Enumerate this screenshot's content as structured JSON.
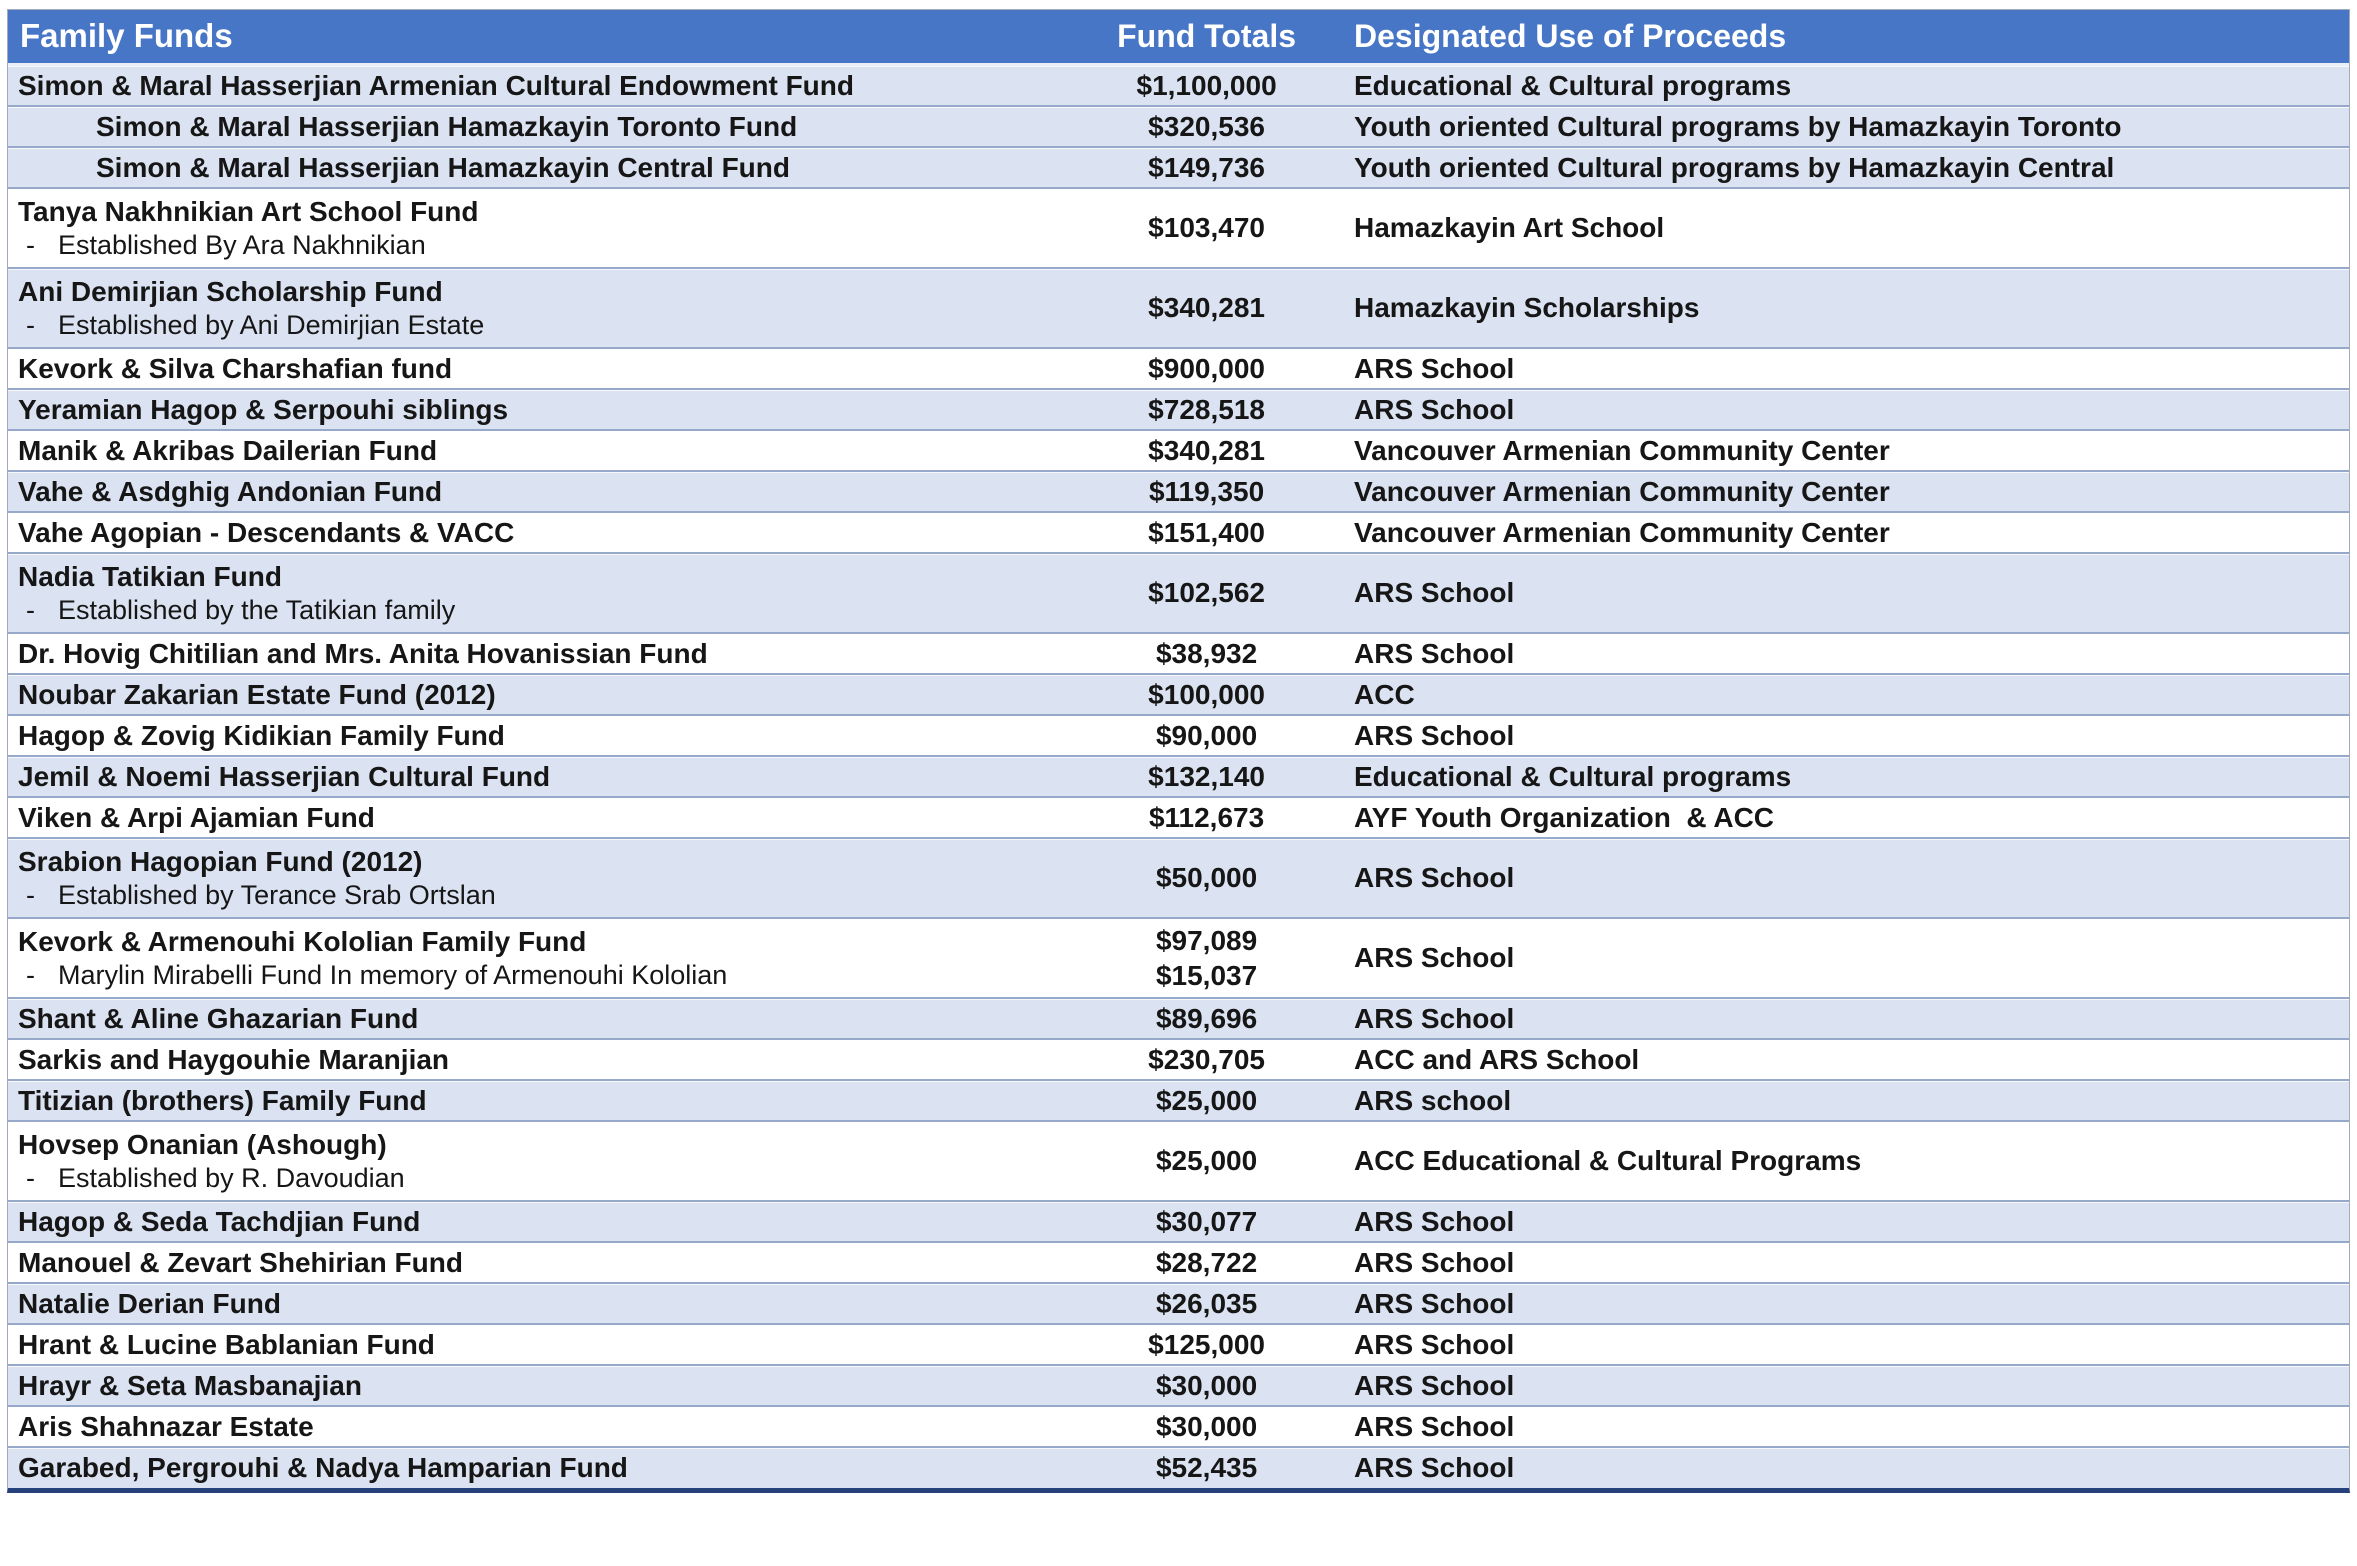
{
  "table": {
    "sub_bullet": "-",
    "columns": [
      {
        "label": "Family Funds"
      },
      {
        "label": "Fund Totals"
      },
      {
        "label": "Designated Use of Proceeds"
      }
    ],
    "colors": {
      "header_bg": "#4676C5",
      "header_text": "#FFFFFF",
      "row_blue": "#DBE2F1",
      "row_white": "#FFFFFF",
      "separator": "#97A9CB",
      "outer_border": "#A3ABB9",
      "bottom_border": "#27417D",
      "text": "#161616"
    },
    "rows": [
      {
        "name": "Simon & Maral Hasserjian Armenian Cultural Endowment Fund",
        "indent": false,
        "sub": null,
        "amounts": [
          "$1,100,000"
        ],
        "use": "Educational & Cultural programs",
        "shade": "blue"
      },
      {
        "name": "Simon & Maral Hasserjian Hamazkayin Toronto Fund",
        "indent": true,
        "sub": null,
        "amounts": [
          "$320,536"
        ],
        "use": "Youth oriented Cultural programs by Hamazkayin Toronto",
        "shade": "blue"
      },
      {
        "name": "Simon & Maral Hasserjian Hamazkayin Central Fund",
        "indent": true,
        "sub": null,
        "amounts": [
          "$149,736"
        ],
        "use": "Youth oriented Cultural programs by Hamazkayin Central",
        "shade": "blue"
      },
      {
        "name": "Tanya Nakhnikian Art School Fund",
        "indent": false,
        "sub": "Established By Ara Nakhnikian",
        "amounts": [
          "$103,470"
        ],
        "use": "Hamazkayin Art School",
        "shade": "white"
      },
      {
        "name": "Ani Demirjian Scholarship Fund",
        "indent": false,
        "sub": "Established by Ani Demirjian Estate",
        "amounts": [
          "$340,281"
        ],
        "use": "Hamazkayin Scholarships",
        "shade": "blue"
      },
      {
        "name": "Kevork & Silva Charshafian fund",
        "indent": false,
        "sub": null,
        "amounts": [
          "$900,000"
        ],
        "use": "ARS School",
        "shade": "white"
      },
      {
        "name": "Yeramian Hagop & Serpouhi siblings",
        "indent": false,
        "sub": null,
        "amounts": [
          "$728,518"
        ],
        "use": "ARS School",
        "shade": "blue"
      },
      {
        "name": "Manik & Akribas Dailerian Fund",
        "indent": false,
        "sub": null,
        "amounts": [
          "$340,281"
        ],
        "use": "Vancouver Armenian Community Center",
        "shade": "white"
      },
      {
        "name": "Vahe & Asdghig Andonian Fund",
        "indent": false,
        "sub": null,
        "amounts": [
          "$119,350"
        ],
        "use": "Vancouver Armenian Community Center",
        "shade": "blue"
      },
      {
        "name": "Vahe Agopian - Descendants & VACC",
        "indent": false,
        "sub": null,
        "amounts": [
          "$151,400"
        ],
        "use": "Vancouver Armenian Community Center",
        "shade": "white"
      },
      {
        "name": "Nadia Tatikian Fund",
        "indent": false,
        "sub": "Established by the Tatikian family",
        "amounts": [
          "$102,562"
        ],
        "use": "ARS School",
        "shade": "blue"
      },
      {
        "name": "Dr. Hovig Chitilian and Mrs. Anita Hovanissian Fund",
        "indent": false,
        "sub": null,
        "amounts": [
          "$38,932"
        ],
        "use": "ARS School",
        "shade": "white"
      },
      {
        "name": "Noubar Zakarian Estate Fund (2012)",
        "indent": false,
        "sub": null,
        "amounts": [
          "$100,000"
        ],
        "use": "ACC",
        "shade": "blue"
      },
      {
        "name": "Hagop & Zovig Kidikian Family Fund",
        "indent": false,
        "sub": null,
        "amounts": [
          "$90,000"
        ],
        "use": "ARS School",
        "shade": "white"
      },
      {
        "name": "Jemil & Noemi Hasserjian Cultural Fund",
        "indent": false,
        "sub": null,
        "amounts": [
          "$132,140"
        ],
        "use": "Educational & Cultural programs",
        "shade": "blue"
      },
      {
        "name": "Viken & Arpi Ajamian Fund",
        "indent": false,
        "sub": null,
        "amounts": [
          "$112,673"
        ],
        "use": "AYF Youth Organization  & ACC",
        "shade": "white"
      },
      {
        "name": "Srabion Hagopian Fund (2012)",
        "indent": false,
        "sub": "Established by Terance Srab Ortslan",
        "amounts": [
          "$50,000"
        ],
        "use": "ARS School",
        "shade": "blue"
      },
      {
        "name": "Kevork & Armenouhi Kololian Family Fund",
        "indent": false,
        "sub": "Marylin Mirabelli Fund In memory of Armenouhi Kololian",
        "amounts": [
          "$97,089",
          "$15,037"
        ],
        "use": "ARS School",
        "shade": "white"
      },
      {
        "name": "Shant & Aline Ghazarian Fund",
        "indent": false,
        "sub": null,
        "amounts": [
          "$89,696"
        ],
        "use": "ARS School",
        "shade": "blue"
      },
      {
        "name": "Sarkis and Haygouhie Maranjian",
        "indent": false,
        "sub": null,
        "amounts": [
          "$230,705"
        ],
        "use": "ACC and ARS School",
        "shade": "white"
      },
      {
        "name": "Titizian (brothers) Family Fund",
        "indent": false,
        "sub": null,
        "amounts": [
          "$25,000"
        ],
        "use": "ARS school",
        "shade": "blue"
      },
      {
        "name": "Hovsep Onanian (Ashough)",
        "indent": false,
        "sub": "Established by R. Davoudian",
        "amounts": [
          "$25,000"
        ],
        "use": "ACC Educational & Cultural Programs",
        "shade": "white"
      },
      {
        "name": "Hagop & Seda Tachdjian Fund",
        "indent": false,
        "sub": null,
        "amounts": [
          "$30,077"
        ],
        "use": "ARS School",
        "shade": "blue"
      },
      {
        "name": "Manouel & Zevart Shehirian Fund",
        "indent": false,
        "sub": null,
        "amounts": [
          "$28,722"
        ],
        "use": "ARS School",
        "shade": "white"
      },
      {
        "name": "Natalie Derian Fund",
        "indent": false,
        "sub": null,
        "amounts": [
          "$26,035"
        ],
        "use": "ARS School",
        "shade": "blue"
      },
      {
        "name": "Hrant & Lucine Bablanian Fund",
        "indent": false,
        "sub": null,
        "amounts": [
          "$125,000"
        ],
        "use": "ARS School",
        "shade": "white"
      },
      {
        "name": "Hrayr & Seta Masbanajian",
        "indent": false,
        "sub": null,
        "amounts": [
          "$30,000"
        ],
        "use": "ARS School",
        "shade": "blue"
      },
      {
        "name": "Aris Shahnazar Estate",
        "indent": false,
        "sub": null,
        "amounts": [
          "$30,000"
        ],
        "use": "ARS School",
        "shade": "white"
      },
      {
        "name": "Garabed, Pergrouhi & Nadya Hamparian Fund",
        "indent": false,
        "sub": null,
        "amounts": [
          "$52,435"
        ],
        "use": "ARS School",
        "shade": "blue"
      }
    ]
  }
}
